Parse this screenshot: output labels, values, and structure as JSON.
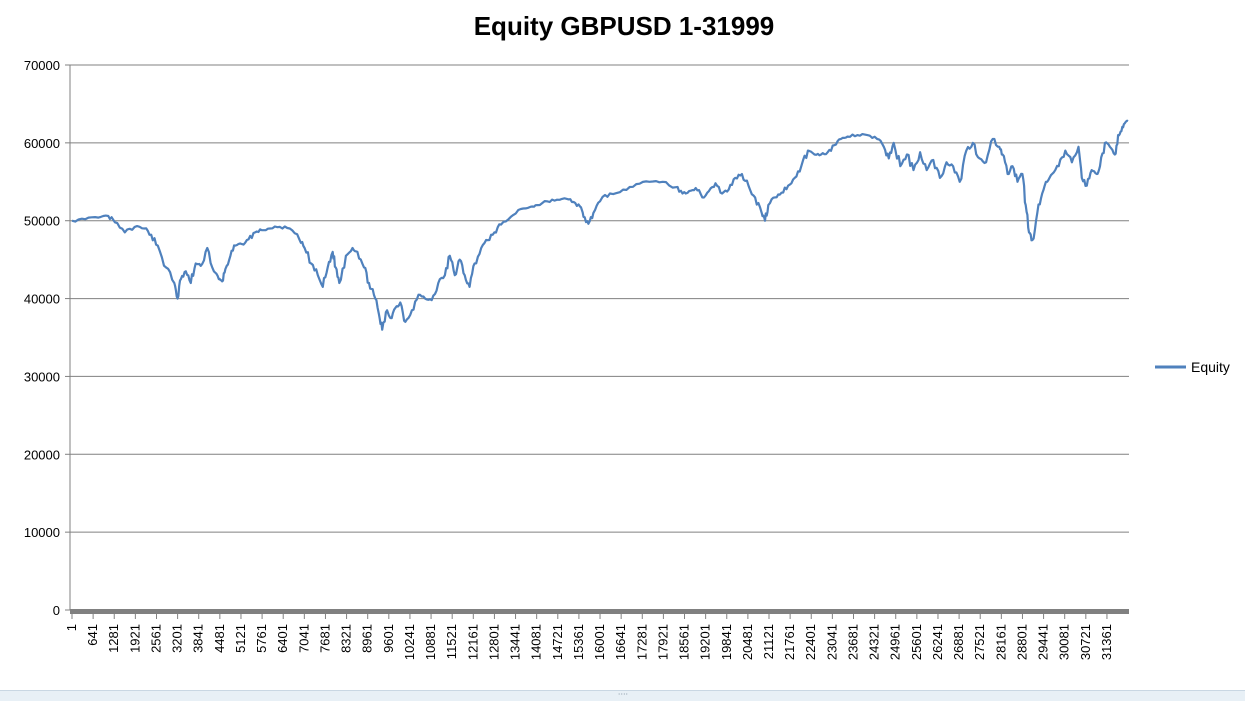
{
  "chart_data": {
    "type": "line",
    "title": "Equity GBPUSD 1-31999",
    "xlabel": "",
    "ylabel": "",
    "ylim": [
      0,
      70000
    ],
    "yticks": [
      "0",
      "10000",
      "20000",
      "30000",
      "40000",
      "50000",
      "60000",
      "70000"
    ],
    "xlim": [
      1,
      31999
    ],
    "xtick_labels": [
      "1",
      "641",
      "1281",
      "1921",
      "2561",
      "3201",
      "3841",
      "4481",
      "5121",
      "5761",
      "6401",
      "7041",
      "7681",
      "8321",
      "8961",
      "9601",
      "10241",
      "10881",
      "11521",
      "12161",
      "12801",
      "13441",
      "14081",
      "14721",
      "15361",
      "16001",
      "16641",
      "17281",
      "17921",
      "18561",
      "19201",
      "19841",
      "20481",
      "21121",
      "21761",
      "22401",
      "23041",
      "23681",
      "24321",
      "24961",
      "25601",
      "26241",
      "26881",
      "27521",
      "28161",
      "28801",
      "29441",
      "30081",
      "30721",
      "31361"
    ],
    "grid": "horizontal",
    "legend_position": "right",
    "colors": {
      "series": "#4F81BD",
      "axis": "#808080",
      "grid": "#808080"
    },
    "series": [
      {
        "name": "Equity",
        "x": [
          1,
          400,
          800,
          1100,
          1300,
          1600,
          1900,
          2200,
          2400,
          2600,
          2850,
          3100,
          3200,
          3300,
          3450,
          3600,
          3750,
          3900,
          4100,
          4300,
          4450,
          4550,
          4650,
          4800,
          4950,
          5150,
          5350,
          5550,
          5750,
          6000,
          6300,
          6600,
          6900,
          7050,
          7250,
          7450,
          7600,
          7750,
          7900,
          7990,
          8100,
          8300,
          8500,
          8650,
          8850,
          9000,
          9150,
          9300,
          9400,
          9550,
          9650,
          9800,
          9950,
          10100,
          10300,
          10500,
          10700,
          10900,
          11100,
          11300,
          11450,
          11600,
          11750,
          11900,
          12050,
          12200,
          12400,
          12600,
          12800,
          13000,
          13300,
          13600,
          13900,
          14100,
          14400,
          14700,
          15000,
          15200,
          15400,
          15500,
          15650,
          15800,
          16000,
          16300,
          16700,
          17100,
          17500,
          17900,
          18300,
          18500,
          18700,
          18900,
          19100,
          19300,
          19500,
          19700,
          19900,
          20100,
          20300,
          20500,
          20700,
          20900,
          21000,
          21100,
          21300,
          21500,
          21700,
          21900,
          22100,
          22300,
          22500,
          22700,
          22900,
          23100,
          23300,
          23500,
          23800,
          24100,
          24400,
          24600,
          24750,
          24900,
          25100,
          25300,
          25500,
          25700,
          25900,
          26100,
          26300,
          26500,
          26700,
          26900,
          27100,
          27300,
          27500,
          27700,
          27900,
          28100,
          28200,
          28350,
          28500,
          28650,
          28800,
          28900,
          29000,
          29100,
          29250,
          29400,
          29550,
          29700,
          29900,
          30100,
          30300,
          30500,
          30600,
          30750,
          30900,
          31050,
          31150,
          31300,
          31450,
          31600,
          31700,
          31800,
          31900,
          31999
        ],
        "values": [
          50000,
          50200,
          50400,
          50600,
          49800,
          48500,
          49200,
          49000,
          48200,
          46800,
          44000,
          42000,
          40000,
          42500,
          43500,
          42000,
          44500,
          44200,
          46500,
          43500,
          42500,
          42200,
          43800,
          45500,
          46800,
          47000,
          47600,
          48500,
          48800,
          49000,
          49200,
          49000,
          47500,
          46500,
          44500,
          43000,
          41500,
          44000,
          46000,
          44000,
          42000,
          45500,
          46500,
          46000,
          44000,
          42000,
          40500,
          38000,
          36000,
          38500,
          37500,
          38800,
          39500,
          37000,
          38500,
          40500,
          40000,
          39800,
          42000,
          43000,
          45500,
          43000,
          45000,
          43000,
          41500,
          44500,
          46500,
          47500,
          48500,
          49500,
          50500,
          51500,
          51800,
          52000,
          52500,
          52700,
          52800,
          52400,
          51800,
          50500,
          49600,
          51000,
          52500,
          53500,
          54000,
          54700,
          55000,
          55000,
          54300,
          53500,
          53800,
          54200,
          53000,
          53800,
          54800,
          53500,
          54000,
          55500,
          56000,
          54500,
          53000,
          51000,
          50000,
          52000,
          53000,
          53600,
          54500,
          55500,
          57000,
          59000,
          58500,
          58500,
          58800,
          59700,
          60500,
          60800,
          61000,
          61000,
          60500,
          59500,
          58000,
          60000,
          57000,
          58500,
          56500,
          58800,
          56500,
          57800,
          55500,
          57500,
          57000,
          55000,
          59000,
          60000,
          58000,
          57500,
          60500,
          59500,
          58500,
          56000,
          57000,
          55000,
          56000,
          52000,
          48500,
          47500,
          51000,
          53500,
          55000,
          56000,
          57000,
          59000,
          57500,
          59500,
          55500,
          54500,
          56500,
          56000,
          57000,
          60000,
          59500,
          58500,
          61000,
          61500,
          62500,
          62800
        ]
      }
    ]
  }
}
